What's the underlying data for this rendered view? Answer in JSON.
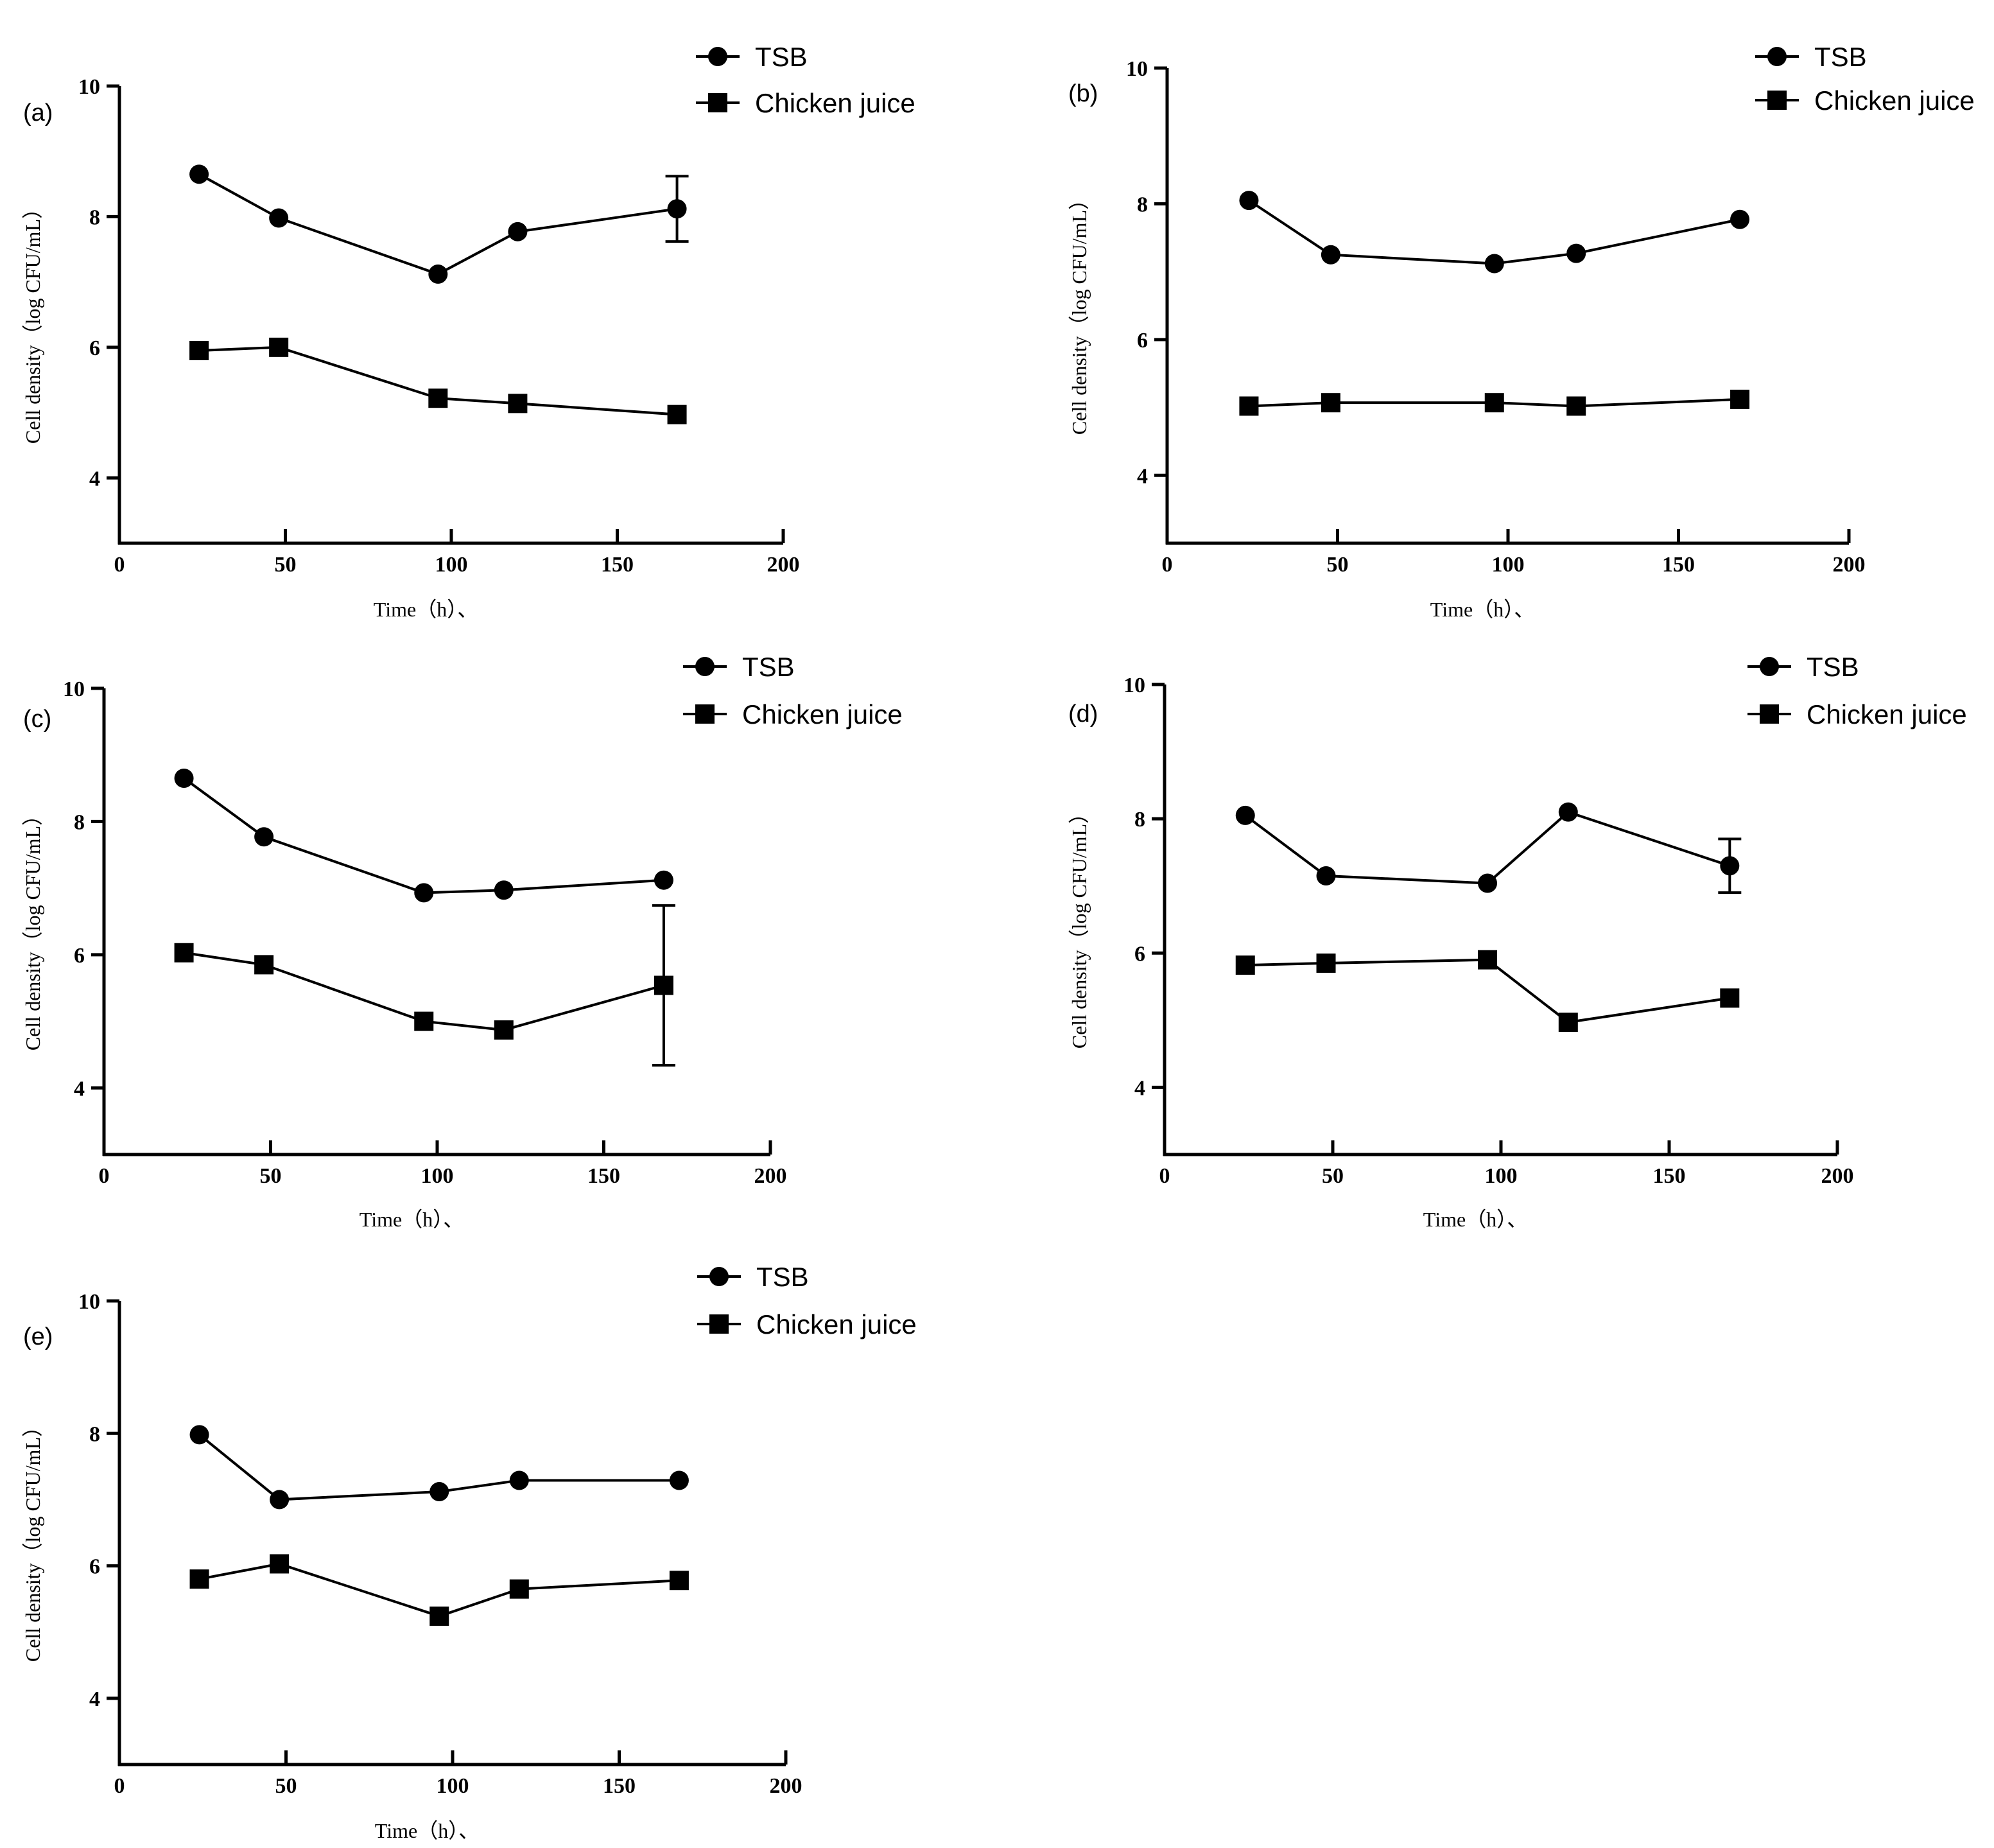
{
  "chart_data": [
    {
      "type": "line",
      "panel": "(a)",
      "xlabel": "Time（h）、",
      "ylabel": "Cell density（log CFU/mL）",
      "xlim": [
        0,
        200
      ],
      "ylim": [
        3,
        10
      ],
      "xticks": [
        "0",
        "50",
        "100",
        "150",
        "200"
      ],
      "yticks": [
        "4",
        "6",
        "8",
        "10"
      ],
      "x": [
        24,
        48,
        96,
        120,
        168
      ],
      "series": [
        {
          "name": "TSB",
          "marker": "circle",
          "values": [
            8.65,
            7.98,
            7.12,
            7.77,
            8.12
          ],
          "errors": [
            0,
            0,
            0,
            0,
            0.5
          ]
        },
        {
          "name": "Chicken juice",
          "marker": "square",
          "values": [
            5.95,
            6.0,
            5.22,
            5.14,
            4.97
          ],
          "errors": [
            0,
            0,
            0,
            0,
            0
          ]
        }
      ]
    },
    {
      "type": "line",
      "panel": "(b)",
      "xlabel": "Time（h）、",
      "ylabel": "Cell density（log CFU/mL）",
      "xlim": [
        0,
        200
      ],
      "ylim": [
        3,
        10
      ],
      "xticks": [
        "0",
        "50",
        "100",
        "150",
        "200"
      ],
      "yticks": [
        "4",
        "6",
        "8",
        "10"
      ],
      "x": [
        24,
        48,
        96,
        120,
        168
      ],
      "series": [
        {
          "name": "TSB",
          "marker": "circle",
          "values": [
            8.05,
            7.25,
            7.12,
            7.27,
            7.77
          ],
          "errors": [
            0,
            0,
            0,
            0,
            0
          ]
        },
        {
          "name": "Chicken juice",
          "marker": "square",
          "values": [
            5.02,
            5.07,
            5.07,
            5.02,
            5.12
          ],
          "errors": [
            0,
            0,
            0,
            0,
            0
          ]
        }
      ]
    },
    {
      "type": "line",
      "panel": "(c)",
      "xlabel": "Time（h）、",
      "ylabel": "Cell density（log CFU/mL）",
      "xlim": [
        0,
        200
      ],
      "ylim": [
        3,
        10
      ],
      "xticks": [
        "0",
        "50",
        "100",
        "150",
        "200"
      ],
      "yticks": [
        "4",
        "6",
        "8",
        "10"
      ],
      "x": [
        24,
        48,
        96,
        120,
        168
      ],
      "series": [
        {
          "name": "TSB",
          "marker": "circle",
          "values": [
            8.65,
            7.77,
            6.93,
            6.97,
            7.12
          ],
          "errors": [
            0,
            0,
            0,
            0,
            0
          ]
        },
        {
          "name": "Chicken juice",
          "marker": "square",
          "values": [
            6.03,
            5.85,
            5.0,
            4.87,
            5.54
          ],
          "errors": [
            0,
            0,
            0,
            0,
            1.2
          ]
        }
      ]
    },
    {
      "type": "line",
      "panel": "(d)",
      "xlabel": "Time（h）、",
      "ylabel": "Cell density（log CFU/mL）",
      "xlim": [
        0,
        200
      ],
      "ylim": [
        3,
        10
      ],
      "xticks": [
        "0",
        "50",
        "100",
        "150",
        "200"
      ],
      "yticks": [
        "4",
        "6",
        "8",
        "10"
      ],
      "x": [
        24,
        48,
        96,
        120,
        168
      ],
      "series": [
        {
          "name": "TSB",
          "marker": "circle",
          "values": [
            8.05,
            7.15,
            7.04,
            8.1,
            7.3
          ],
          "errors": [
            0,
            0,
            0,
            0,
            0.4
          ]
        },
        {
          "name": "Chicken juice",
          "marker": "square",
          "values": [
            5.82,
            5.85,
            5.9,
            4.97,
            5.33
          ],
          "errors": [
            0,
            0,
            0,
            0,
            0
          ]
        }
      ]
    },
    {
      "type": "line",
      "panel": "(e)",
      "xlabel": "Time（h）、",
      "ylabel": "Cell density（log CFU/mL）",
      "xlim": [
        0,
        200
      ],
      "ylim": [
        3,
        10
      ],
      "xticks": [
        "0",
        "50",
        "100",
        "150",
        "200"
      ],
      "yticks": [
        "4",
        "6",
        "8",
        "10"
      ],
      "x": [
        24,
        48,
        96,
        120,
        168
      ],
      "series": [
        {
          "name": "TSB",
          "marker": "circle",
          "values": [
            7.98,
            7.0,
            7.12,
            7.29,
            7.29
          ],
          "errors": [
            0,
            0,
            0,
            0,
            0
          ]
        },
        {
          "name": "Chicken juice",
          "marker": "square",
          "values": [
            5.8,
            6.03,
            5.24,
            5.65,
            5.78
          ],
          "errors": [
            0,
            0,
            0,
            0,
            0
          ]
        }
      ]
    }
  ]
}
